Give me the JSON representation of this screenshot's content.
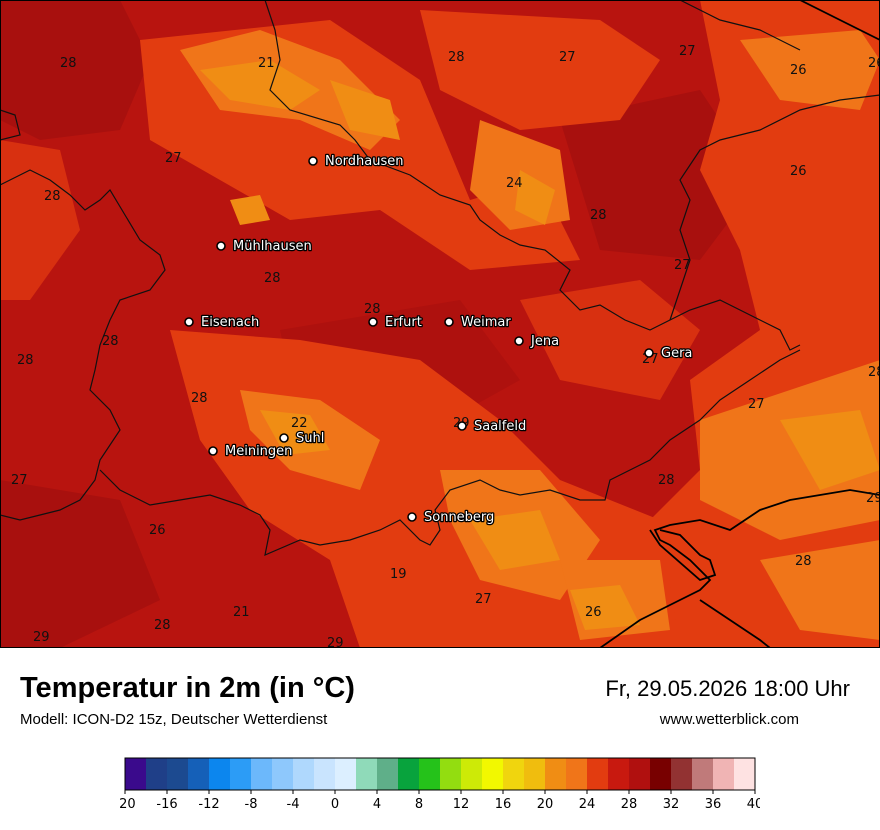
{
  "title": "Temperatur in 2m (in °C)",
  "subtitle": "Modell: ICON-D2 15z, Deutscher Wetterdienst",
  "datetime": "Fr, 29.05.2026 18:00 Uhr",
  "website": "www.wetterblick.com",
  "cities": [
    {
      "name": "Nordhausen"
    },
    {
      "name": "Mühlhausen"
    },
    {
      "name": "Eisenach"
    },
    {
      "name": "Erfurt"
    },
    {
      "name": "Weimar"
    },
    {
      "name": "Jena"
    },
    {
      "name": "Gera"
    },
    {
      "name": "Suhl"
    },
    {
      "name": "Meiningen"
    },
    {
      "name": "Saalfeld"
    },
    {
      "name": "Sonneberg"
    }
  ],
  "values": [
    "28",
    "21",
    "28",
    "27",
    "27",
    "26",
    "26",
    "27",
    "28",
    "24",
    "26",
    "28",
    "28",
    "27",
    "28",
    "28",
    "28",
    "28",
    "27",
    "27",
    "28",
    "22",
    "29",
    "27",
    "28",
    "26",
    "29",
    "19",
    "28",
    "27",
    "26",
    "21",
    "28",
    "29",
    "29",
    "28"
  ],
  "legend": {
    "ticks": [
      "-20",
      "-16",
      "-12",
      "-8",
      "-4",
      "0",
      "4",
      "8",
      "12",
      "16",
      "20",
      "24",
      "28",
      "32",
      "36",
      "40"
    ],
    "colors": [
      "#3a0a8c",
      "#1f3f88",
      "#1c4a90",
      "#1560b8",
      "#0c86ee",
      "#2c9cf6",
      "#6cb8fb",
      "#8ec8fc",
      "#afd8fd",
      "#c9e4fe",
      "#dcefff",
      "#8fdab9",
      "#5faf89",
      "#08a33d",
      "#25c21a",
      "#93dd10",
      "#cdea07",
      "#f2f800",
      "#f0d50e",
      "#f0bd0e",
      "#f08d14",
      "#f07519",
      "#e23c10",
      "#c8190f",
      "#b0100f",
      "#780000",
      "#923232",
      "#c07a7a",
      "#f0b4b4",
      "#fee2e2"
    ]
  }
}
